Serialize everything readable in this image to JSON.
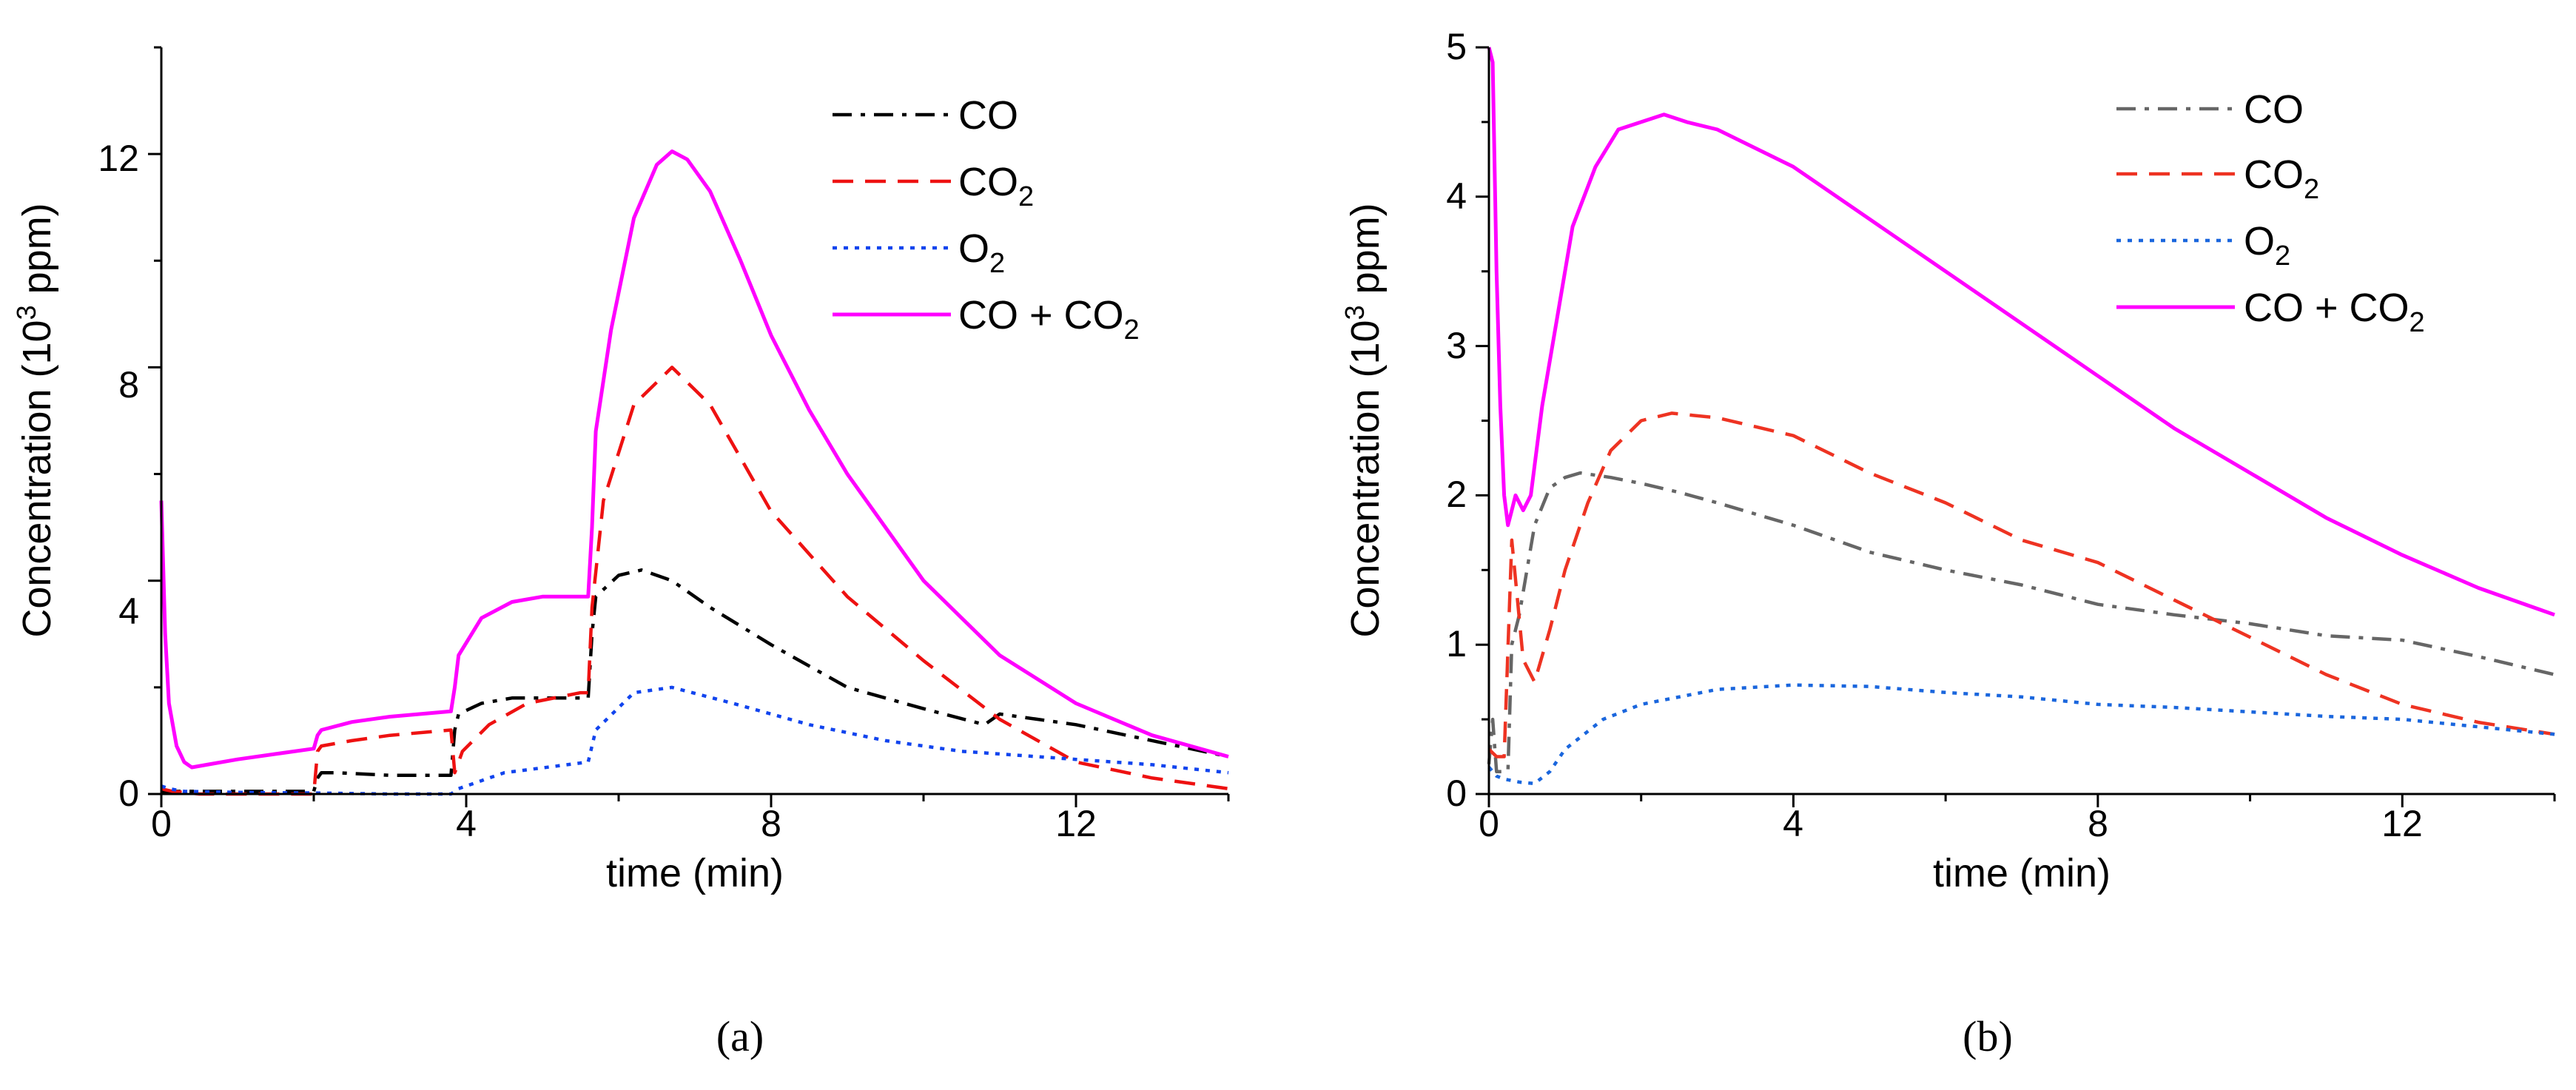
{
  "figure": {
    "captions": [
      "(a)",
      "(b)"
    ]
  },
  "chart_data": [
    {
      "type": "line",
      "panel": "(a)",
      "title": "",
      "xlabel": "time (min)",
      "ylabel": {
        "prefix": "Concentration (10",
        "sup": "3",
        "suffix": " ppm)"
      },
      "xlim": [
        0,
        14
      ],
      "ylim": [
        0,
        14
      ],
      "xticks": [
        "0",
        "4",
        "8",
        "12"
      ],
      "yticks": [
        "0",
        "4",
        "8",
        "12"
      ],
      "grid": false,
      "legend_position": "top-right",
      "series": [
        {
          "name": "CO",
          "legend": {
            "main": "CO",
            "sub": ""
          },
          "color": "#000000",
          "dash": "dashdot",
          "x": [
            0,
            0.05,
            0.1,
            0.3,
            1,
            2,
            2.05,
            2.1,
            2.3,
            3,
            3.8,
            3.85,
            3.9,
            4.2,
            4.6,
            5,
            5.6,
            5.65,
            5.7,
            6,
            6.3,
            6.7,
            7.2,
            8,
            9,
            10,
            10.8,
            11,
            12,
            13,
            14
          ],
          "y": [
            0.05,
            0.05,
            0.05,
            0.05,
            0.05,
            0.05,
            0.3,
            0.4,
            0.4,
            0.35,
            0.35,
            1.2,
            1.5,
            1.7,
            1.8,
            1.8,
            1.8,
            3,
            3.7,
            4.1,
            4.2,
            4,
            3.5,
            2.8,
            2,
            1.6,
            1.3,
            1.5,
            1.3,
            1,
            0.7
          ]
        },
        {
          "name": "CO2",
          "legend": {
            "main": "CO",
            "sub": "2"
          },
          "color": "#ee1111",
          "dash": "dash",
          "x": [
            0,
            0.05,
            0.15,
            0.3,
            0.5,
            1,
            2,
            2.05,
            2.1,
            2.5,
            3,
            3.8,
            3.85,
            3.95,
            4.3,
            4.8,
            5.5,
            5.6,
            5.65,
            5.8,
            6.2,
            6.7,
            7.2,
            8,
            9,
            10,
            11,
            12,
            13,
            14
          ],
          "y": [
            0.1,
            0.08,
            0.05,
            0.03,
            0,
            0,
            0,
            0.8,
            0.9,
            1,
            1.1,
            1.2,
            0.4,
            0.8,
            1.3,
            1.7,
            1.9,
            1.9,
            3.5,
            5.5,
            7.3,
            8,
            7.3,
            5.3,
            3.7,
            2.5,
            1.4,
            0.6,
            0.3,
            0.1
          ]
        },
        {
          "name": "O2",
          "legend": {
            "main": "O",
            "sub": "2"
          },
          "color": "#1144ee",
          "dash": "dot",
          "x": [
            0,
            0.1,
            0.3,
            1,
            2,
            3,
            3.8,
            3.9,
            4.5,
            5.6,
            5.7,
            6.2,
            6.7,
            7.5,
            8.5,
            9.5,
            10.5,
            11,
            12,
            13,
            14
          ],
          "y": [
            0.15,
            0.1,
            0.05,
            0.03,
            0.02,
            0,
            0,
            0.1,
            0.4,
            0.6,
            1.2,
            1.9,
            2,
            1.7,
            1.3,
            1,
            0.8,
            0.75,
            0.65,
            0.55,
            0.4
          ]
        },
        {
          "name": "CO + CO2",
          "legend": {
            "main": "CO + CO",
            "sub": "2"
          },
          "color": "#ff00ff",
          "dash": "solid",
          "x": [
            0,
            0.05,
            0.1,
            0.2,
            0.3,
            0.4,
            0.6,
            1,
            1.5,
            2,
            2.05,
            2.1,
            2.5,
            3,
            3.8,
            3.85,
            3.9,
            4.2,
            4.6,
            5,
            5.6,
            5.65,
            5.7,
            5.9,
            6.2,
            6.5,
            6.7,
            6.9,
            7.2,
            7.6,
            8,
            8.5,
            9,
            10,
            11,
            12,
            13,
            14
          ],
          "y": [
            5.5,
            3,
            1.7,
            0.9,
            0.6,
            0.5,
            0.55,
            0.65,
            0.75,
            0.85,
            1.1,
            1.2,
            1.35,
            1.45,
            1.55,
            2,
            2.6,
            3.3,
            3.6,
            3.7,
            3.7,
            5,
            6.8,
            8.7,
            10.8,
            11.8,
            12.05,
            11.9,
            11.3,
            10,
            8.6,
            7.2,
            6,
            4,
            2.6,
            1.7,
            1.1,
            0.7
          ]
        }
      ]
    },
    {
      "type": "line",
      "panel": "(b)",
      "title": "",
      "xlabel": "time (min)",
      "ylabel": {
        "prefix": "Concentration (10",
        "sup": "3",
        "suffix": " ppm)"
      },
      "xlim": [
        0,
        14
      ],
      "ylim": [
        0,
        5
      ],
      "xticks": [
        "0",
        "4",
        "8",
        "12"
      ],
      "yticks": [
        "0",
        "1",
        "2",
        "3",
        "4",
        "5"
      ],
      "grid": false,
      "legend_position": "top-right",
      "series": [
        {
          "name": "CO",
          "legend": {
            "main": "CO",
            "sub": ""
          },
          "color": "#666666",
          "dash": "dashdot",
          "x": [
            0,
            0.05,
            0.1,
            0.15,
            0.25,
            0.3,
            0.4,
            0.6,
            0.8,
            1,
            1.2,
            1.6,
            2,
            2.5,
            3,
            4,
            5,
            6,
            7,
            8,
            9,
            10,
            11,
            12,
            13,
            14
          ],
          "y": [
            0.2,
            0.5,
            0.15,
            0.15,
            0.15,
            1.0,
            1.2,
            1.8,
            2.05,
            2.12,
            2.15,
            2.12,
            2.08,
            2.02,
            1.95,
            1.8,
            1.62,
            1.5,
            1.4,
            1.27,
            1.2,
            1.14,
            1.06,
            1.03,
            0.92,
            0.8
          ]
        },
        {
          "name": "CO2",
          "legend": {
            "main": "CO",
            "sub": "2"
          },
          "color": "#ee3322",
          "dash": "dash",
          "x": [
            0,
            0.1,
            0.2,
            0.3,
            0.45,
            0.6,
            0.8,
            1,
            1.3,
            1.6,
            2,
            2.4,
            3,
            4,
            5,
            6,
            7,
            8,
            9,
            10,
            11,
            12,
            13,
            14
          ],
          "y": [
            0.3,
            0.25,
            0.25,
            1.7,
            0.9,
            0.75,
            1.1,
            1.5,
            1.95,
            2.3,
            2.5,
            2.55,
            2.52,
            2.4,
            2.15,
            1.95,
            1.7,
            1.55,
            1.3,
            1.05,
            0.8,
            0.6,
            0.48,
            0.4
          ]
        },
        {
          "name": "O2",
          "legend": {
            "main": "O",
            "sub": "2"
          },
          "color": "#1a66dd",
          "dash": "dot",
          "x": [
            0,
            0.1,
            0.2,
            0.4,
            0.6,
            0.8,
            1,
            1.5,
            2,
            3,
            4,
            5,
            6,
            7,
            8,
            9,
            10,
            11,
            12,
            13,
            14
          ],
          "y": [
            0.18,
            0.12,
            0.1,
            0.08,
            0.07,
            0.15,
            0.3,
            0.5,
            0.6,
            0.7,
            0.73,
            0.72,
            0.68,
            0.65,
            0.6,
            0.58,
            0.55,
            0.52,
            0.5,
            0.45,
            0.4
          ]
        },
        {
          "name": "CO + CO2",
          "legend": {
            "main": "CO + CO",
            "sub": "2"
          },
          "color": "#ff00ff",
          "dash": "solid",
          "x": [
            0,
            0.05,
            0.1,
            0.15,
            0.2,
            0.25,
            0.3,
            0.35,
            0.45,
            0.55,
            0.7,
            0.9,
            1.1,
            1.4,
            1.7,
            2,
            2.3,
            2.6,
            3,
            4,
            5,
            6,
            7,
            8,
            9,
            10,
            11,
            12,
            13,
            14
          ],
          "y": [
            5.0,
            4.9,
            3.5,
            2.6,
            2.0,
            1.8,
            1.9,
            2.0,
            1.9,
            2.0,
            2.6,
            3.2,
            3.8,
            4.2,
            4.45,
            4.5,
            4.55,
            4.5,
            4.45,
            4.2,
            3.85,
            3.5,
            3.15,
            2.8,
            2.45,
            2.15,
            1.85,
            1.6,
            1.38,
            1.2
          ]
        }
      ]
    }
  ]
}
